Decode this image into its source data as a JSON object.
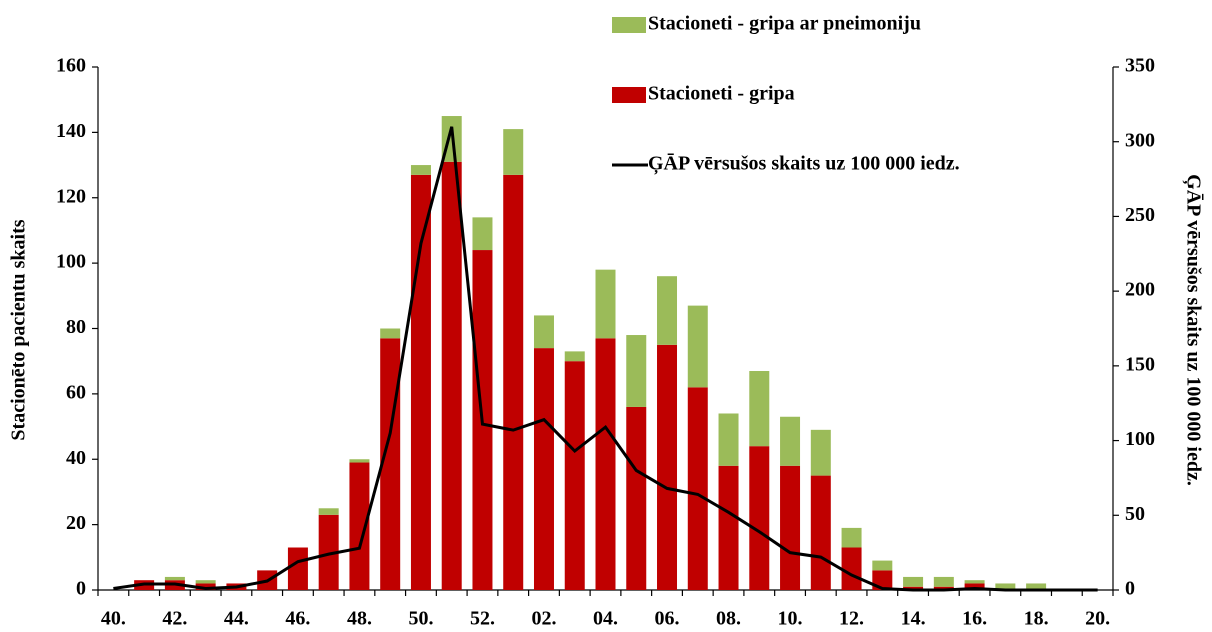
{
  "chart_data": {
    "type": "bar",
    "stacked": true,
    "y_label": "Stacionēto pacientu skaits",
    "y2_label": "ĢĀP vērsušos skaits uz 100 000 iedz.",
    "categories": [
      "40.",
      null,
      "42.",
      null,
      "44.",
      null,
      "46.",
      null,
      "48.",
      null,
      "50.",
      null,
      "52.",
      null,
      "02.",
      null,
      "04.",
      null,
      "06.",
      null,
      "08.",
      null,
      "10.",
      null,
      "12.",
      null,
      "14.",
      null,
      "16.",
      null,
      "18.",
      null,
      "20."
    ],
    "series": [
      {
        "name": "Stacioneti - gripa",
        "type": "bar",
        "color": "#c00000",
        "values": [
          0,
          3,
          3,
          2,
          2,
          6,
          13,
          23,
          39,
          77,
          127,
          131,
          104,
          127,
          74,
          70,
          77,
          56,
          75,
          62,
          38,
          44,
          38,
          35,
          13,
          6,
          1,
          1,
          2,
          0,
          0,
          0,
          0
        ]
      },
      {
        "name": "Stacioneti - gripa ar pneimoniju",
        "type": "bar",
        "color": "#9bbb59",
        "values": [
          0,
          0,
          1,
          1,
          0,
          0,
          0,
          2,
          1,
          3,
          3,
          14,
          10,
          14,
          10,
          3,
          21,
          22,
          21,
          25,
          16,
          23,
          15,
          14,
          6,
          3,
          3,
          3,
          1,
          2,
          2,
          0,
          0
        ]
      },
      {
        "name": "ĢĀP vērsušos skaits uz 100 000 iedz.",
        "type": "line",
        "axis": "y2",
        "color": "#000000",
        "values": [
          1,
          4,
          4,
          1,
          2,
          6,
          19,
          24,
          28,
          105,
          232,
          310,
          111,
          107,
          114,
          93,
          109,
          80,
          68,
          64,
          52,
          39,
          25,
          22,
          10,
          1,
          0,
          0,
          1,
          0,
          0,
          0,
          0
        ]
      }
    ],
    "ylim": [
      0,
      160
    ],
    "yticks": [
      0,
      20,
      40,
      60,
      80,
      100,
      120,
      140,
      160
    ],
    "y2lim": [
      0,
      350
    ],
    "y2ticks": [
      0,
      50,
      100,
      150,
      200,
      250,
      300,
      350
    ],
    "grid": false,
    "legend": "top-right"
  }
}
